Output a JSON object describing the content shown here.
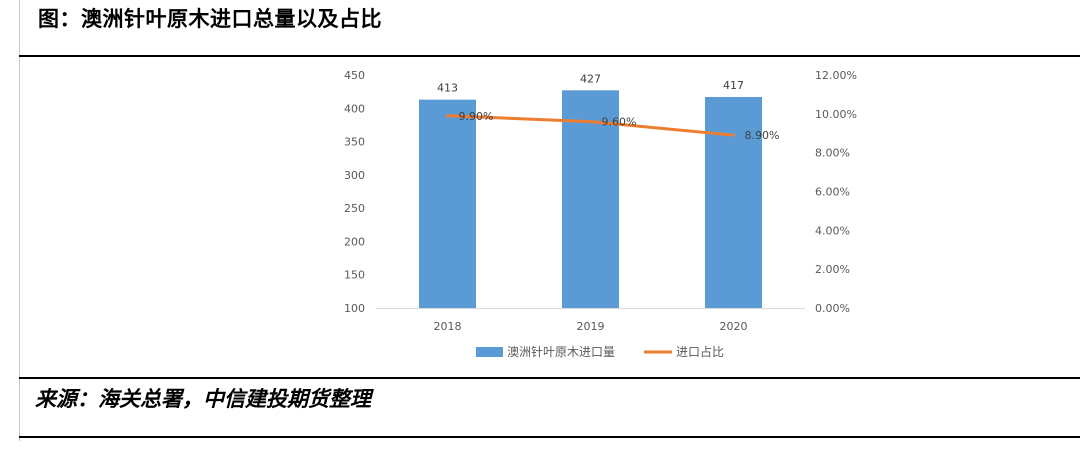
{
  "title": "图：澳洲针叶原木进口总量以及占比",
  "source": "来源：海关总署，中信建投期货整理",
  "colors": {
    "bar": "#5b9bd5",
    "line": "#ed7d31",
    "text": "#595959",
    "axis": "#d9d9d9"
  },
  "chart_data": {
    "type": "bar",
    "title": "",
    "xlabel": "",
    "ylabel": "",
    "categories": [
      "2018",
      "2019",
      "2020"
    ],
    "series": [
      {
        "name": "澳洲针叶原木进口量",
        "type": "bar",
        "axis": "left",
        "values": [
          413,
          427,
          417
        ],
        "labels": [
          "413",
          "427",
          "417"
        ]
      },
      {
        "name": "进口占比",
        "type": "line",
        "axis": "right",
        "values": [
          9.9,
          9.6,
          8.9
        ],
        "labels": [
          "9.90%",
          "9.60%",
          "8.90%"
        ]
      }
    ],
    "ylim": [
      100,
      450
    ],
    "yticks": [
      "100",
      "150",
      "200",
      "250",
      "300",
      "350",
      "400",
      "450"
    ],
    "y2lim": [
      0,
      12
    ],
    "y2ticks": [
      "0.00%",
      "2.00%",
      "4.00%",
      "6.00%",
      "8.00%",
      "10.00%",
      "12.00%"
    ],
    "grid": false,
    "legend": "bottom"
  }
}
